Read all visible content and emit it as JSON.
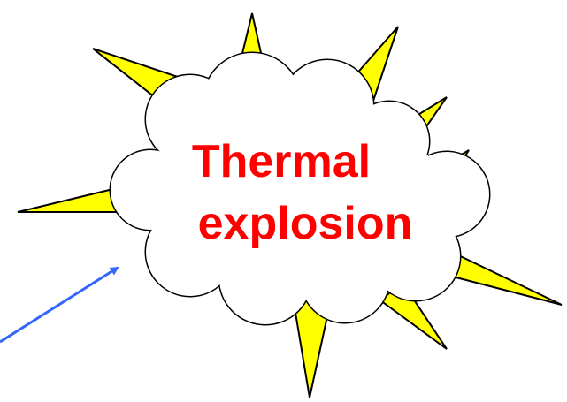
{
  "callout": {
    "lines": [
      "Thermal",
      "explosion"
    ]
  }
}
